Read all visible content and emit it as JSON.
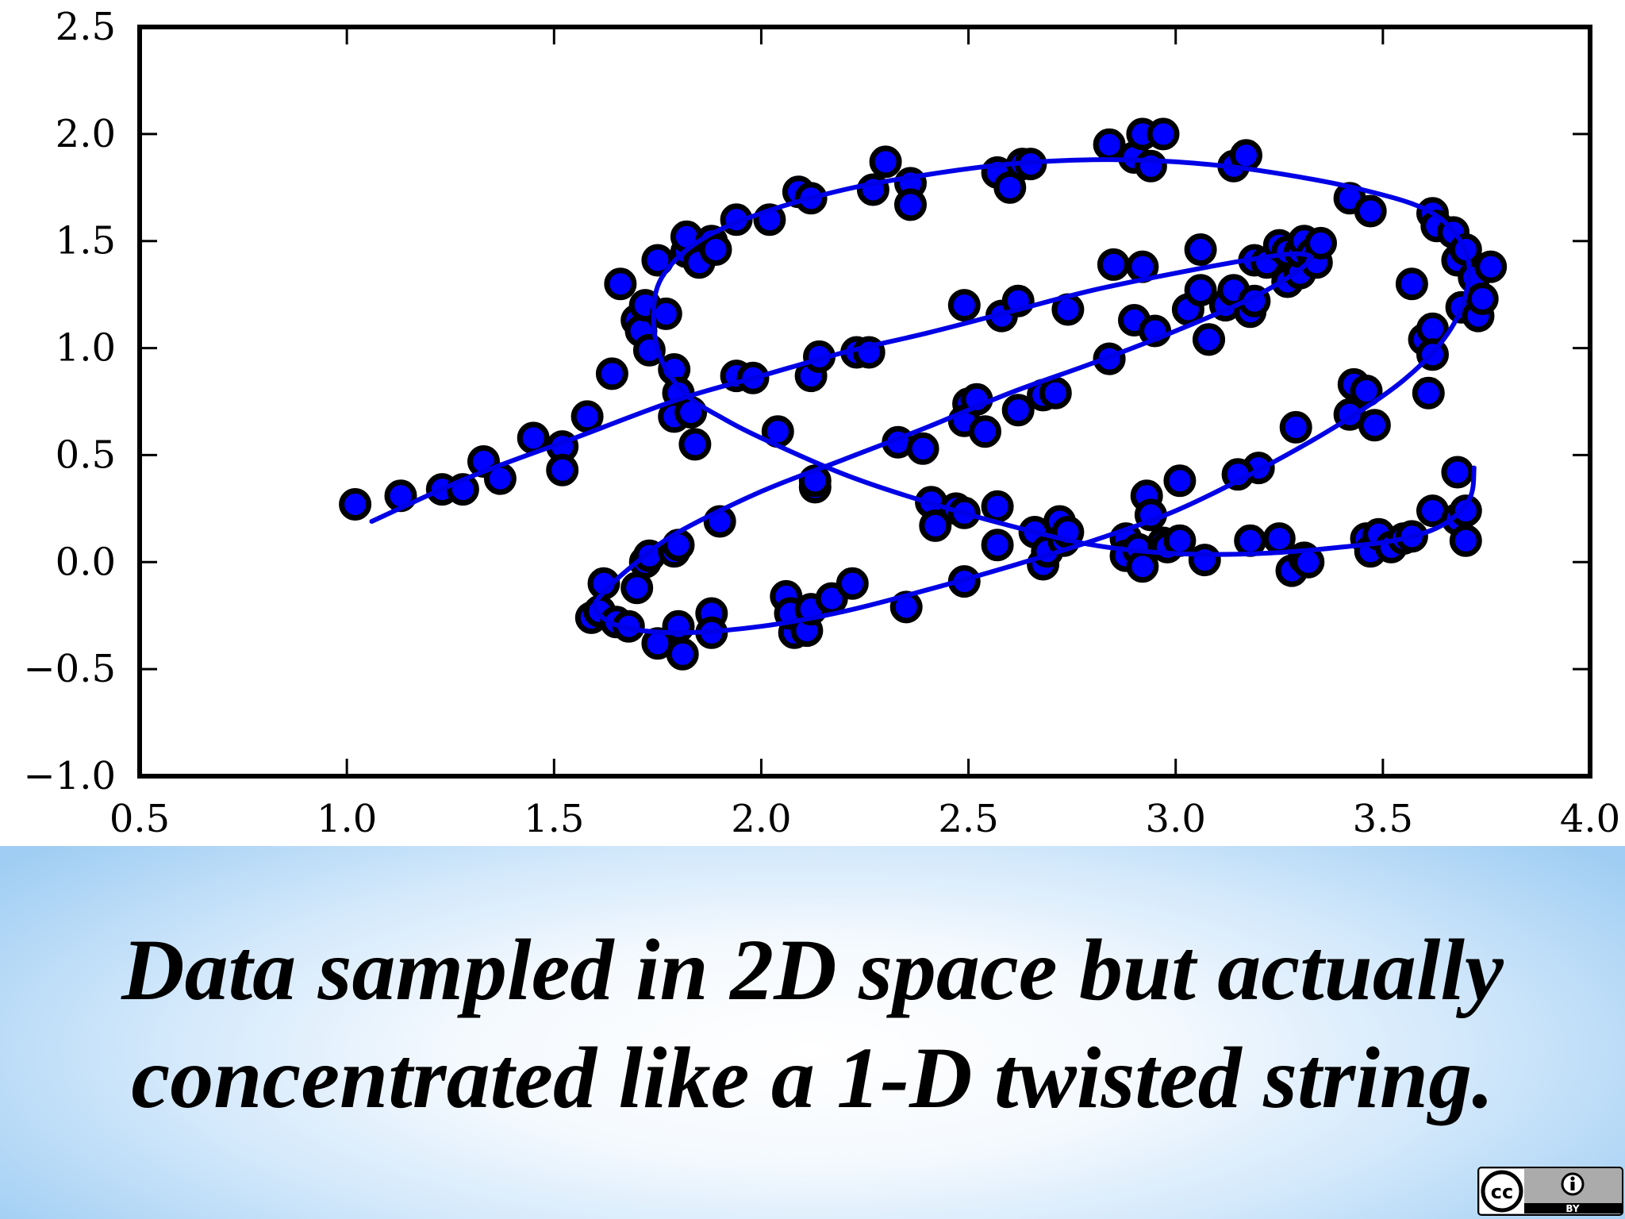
{
  "caption": {
    "line1": "Data sampled in 2D space but actually",
    "line2": "concentrated like a 1-D twisted string."
  },
  "license_badge": {
    "icon": "creative-commons-by-icon",
    "left_glyph": "cc",
    "right_text": "BY"
  },
  "colors": {
    "marker_fill": "#0000ff",
    "marker_edge": "#000000",
    "curve": "#0000e6",
    "caption_band": "#9fcdf3"
  },
  "chart_data": {
    "type": "scatter",
    "title": "",
    "xlabel": "",
    "ylabel": "",
    "xlim": [
      0.5,
      4.0
    ],
    "ylim": [
      -1.0,
      2.5
    ],
    "xticks": [
      "0.5",
      "1.0",
      "1.5",
      "2.0",
      "2.5",
      "3.0",
      "3.5",
      "4.0"
    ],
    "yticks": [
      "2.5",
      "2.0",
      "1.5",
      "1.0",
      "0.5",
      "0.0",
      "−0.5",
      "−1.0"
    ],
    "grid": false,
    "legend": "none",
    "points": [
      [
        1.02,
        0.27
      ],
      [
        1.13,
        0.31
      ],
      [
        1.23,
        0.34
      ],
      [
        1.28,
        0.34
      ],
      [
        1.33,
        0.47
      ],
      [
        1.37,
        0.39
      ],
      [
        1.45,
        0.58
      ],
      [
        1.52,
        0.54
      ],
      [
        1.52,
        0.43
      ],
      [
        1.58,
        0.68
      ],
      [
        1.64,
        0.88
      ],
      [
        1.66,
        1.3
      ],
      [
        1.7,
        1.13
      ],
      [
        1.71,
        1.08
      ],
      [
        1.72,
        1.2
      ],
      [
        1.73,
        0.99
      ],
      [
        1.77,
        1.16
      ],
      [
        1.75,
        1.41
      ],
      [
        1.79,
        0.9
      ],
      [
        1.8,
        0.79
      ],
      [
        1.79,
        0.68
      ],
      [
        1.83,
        0.7
      ],
      [
        1.84,
        0.55
      ],
      [
        1.82,
        1.45
      ],
      [
        1.82,
        1.52
      ],
      [
        1.85,
        1.4
      ],
      [
        1.88,
        1.5
      ],
      [
        1.89,
        1.46
      ],
      [
        1.94,
        1.6
      ],
      [
        1.94,
        0.87
      ],
      [
        1.98,
        0.86
      ],
      [
        2.02,
        1.6
      ],
      [
        2.04,
        0.61
      ],
      [
        2.09,
        1.73
      ],
      [
        2.12,
        1.7
      ],
      [
        2.12,
        0.87
      ],
      [
        2.14,
        0.96
      ],
      [
        2.23,
        0.98
      ],
      [
        2.26,
        0.98
      ],
      [
        2.27,
        1.74
      ],
      [
        2.3,
        1.87
      ],
      [
        2.33,
        0.56
      ],
      [
        2.36,
        1.77
      ],
      [
        2.36,
        1.67
      ],
      [
        2.39,
        0.53
      ],
      [
        2.49,
        1.2
      ],
      [
        2.5,
        0.74
      ],
      [
        2.49,
        0.66
      ],
      [
        2.52,
        0.76
      ],
      [
        2.54,
        0.61
      ],
      [
        2.57,
        1.82
      ],
      [
        2.58,
        1.15
      ],
      [
        2.6,
        1.75
      ],
      [
        2.62,
        1.22
      ],
      [
        2.62,
        0.71
      ],
      [
        2.63,
        1.86
      ],
      [
        2.65,
        1.86
      ],
      [
        2.68,
        0.78
      ],
      [
        2.71,
        0.79
      ],
      [
        2.74,
        1.18
      ],
      [
        2.84,
        1.95
      ],
      [
        2.84,
        0.95
      ],
      [
        2.85,
        1.39
      ],
      [
        2.9,
        1.89
      ],
      [
        2.9,
        1.13
      ],
      [
        2.92,
        2.0
      ],
      [
        2.92,
        1.38
      ],
      [
        2.94,
        1.85
      ],
      [
        2.95,
        1.08
      ],
      [
        2.97,
        2.0
      ],
      [
        3.03,
        1.18
      ],
      [
        3.06,
        1.46
      ],
      [
        3.06,
        1.27
      ],
      [
        3.08,
        1.04
      ],
      [
        3.12,
        1.2
      ],
      [
        3.14,
        1.85
      ],
      [
        3.14,
        1.27
      ],
      [
        3.17,
        1.9
      ],
      [
        3.18,
        1.17
      ],
      [
        3.19,
        1.22
      ],
      [
        3.19,
        1.41
      ],
      [
        3.22,
        1.4
      ],
      [
        3.25,
        1.48
      ],
      [
        3.27,
        1.31
      ],
      [
        3.27,
        1.45
      ],
      [
        3.3,
        1.35
      ],
      [
        3.3,
        1.45
      ],
      [
        3.31,
        1.5
      ],
      [
        3.33,
        1.44
      ],
      [
        3.34,
        1.4
      ],
      [
        3.35,
        1.49
      ],
      [
        3.42,
        1.7
      ],
      [
        3.47,
        1.64
      ],
      [
        3.57,
        1.3
      ],
      [
        3.6,
        1.04
      ],
      [
        3.62,
        1.09
      ],
      [
        3.62,
        0.97
      ],
      [
        3.61,
        0.79
      ],
      [
        3.62,
        1.63
      ],
      [
        3.63,
        1.57
      ],
      [
        3.67,
        1.54
      ],
      [
        3.69,
        1.19
      ],
      [
        3.68,
        1.41
      ],
      [
        3.7,
        1.46
      ],
      [
        3.72,
        1.33
      ],
      [
        3.73,
        1.15
      ],
      [
        3.74,
        1.23
      ],
      [
        3.76,
        1.38
      ],
      [
        3.43,
        0.83
      ],
      [
        3.42,
        0.69
      ],
      [
        3.46,
        0.8
      ],
      [
        3.48,
        0.64
      ],
      [
        3.29,
        0.63
      ],
      [
        3.2,
        0.44
      ],
      [
        3.15,
        0.41
      ],
      [
        3.01,
        0.38
      ],
      [
        2.93,
        0.31
      ],
      [
        2.94,
        0.22
      ],
      [
        2.84,
        0.95
      ],
      [
        3.08,
        1.04
      ],
      [
        2.08,
        -0.33
      ],
      [
        1.59,
        -0.26
      ],
      [
        1.61,
        -0.23
      ],
      [
        1.62,
        -0.1
      ],
      [
        1.65,
        -0.28
      ],
      [
        1.68,
        -0.3
      ],
      [
        1.7,
        -0.12
      ],
      [
        1.72,
        0.0
      ],
      [
        1.73,
        0.03
      ],
      [
        1.75,
        -0.38
      ],
      [
        1.79,
        0.05
      ],
      [
        1.8,
        0.08
      ],
      [
        1.8,
        -0.3
      ],
      [
        1.81,
        -0.43
      ],
      [
        1.88,
        -0.24
      ],
      [
        1.88,
        -0.33
      ],
      [
        1.9,
        0.19
      ],
      [
        2.06,
        -0.16
      ],
      [
        2.07,
        -0.24
      ],
      [
        2.11,
        -0.32
      ],
      [
        2.12,
        -0.22
      ],
      [
        2.17,
        -0.17
      ],
      [
        2.22,
        -0.1
      ],
      [
        2.35,
        -0.21
      ],
      [
        2.13,
        0.35
      ],
      [
        2.13,
        0.38
      ],
      [
        2.41,
        0.28
      ],
      [
        2.42,
        0.17
      ],
      [
        2.47,
        0.25
      ],
      [
        2.49,
        0.23
      ],
      [
        2.57,
        0.26
      ],
      [
        2.49,
        -0.09
      ],
      [
        2.57,
        0.08
      ],
      [
        2.66,
        0.14
      ],
      [
        2.68,
        -0.01
      ],
      [
        2.69,
        0.05
      ],
      [
        2.72,
        0.19
      ],
      [
        2.73,
        0.1
      ],
      [
        2.74,
        0.14
      ],
      [
        2.88,
        0.11
      ],
      [
        2.88,
        0.03
      ],
      [
        2.91,
        0.06
      ],
      [
        2.92,
        -0.02
      ],
      [
        2.97,
        0.09
      ],
      [
        2.98,
        0.07
      ],
      [
        3.01,
        0.1
      ],
      [
        3.07,
        0.01
      ],
      [
        3.18,
        0.1
      ],
      [
        3.25,
        0.11
      ],
      [
        3.28,
        -0.04
      ],
      [
        3.31,
        0.02
      ],
      [
        3.32,
        0.0
      ],
      [
        3.46,
        0.11
      ],
      [
        3.47,
        0.05
      ],
      [
        3.49,
        0.13
      ],
      [
        3.52,
        0.07
      ],
      [
        3.55,
        0.11
      ],
      [
        3.57,
        0.12
      ],
      [
        3.62,
        0.24
      ],
      [
        3.68,
        0.2
      ],
      [
        3.68,
        0.42
      ],
      [
        3.7,
        0.24
      ],
      [
        3.7,
        0.1
      ]
    ],
    "curve": [
      [
        1.06,
        0.19
      ],
      [
        1.3,
        0.4
      ],
      [
        1.55,
        0.58
      ],
      [
        1.8,
        0.76
      ],
      [
        2.0,
        0.87
      ],
      [
        2.2,
        0.98
      ],
      [
        2.4,
        1.07
      ],
      [
        2.6,
        1.17
      ],
      [
        2.8,
        1.27
      ],
      [
        3.0,
        1.35
      ],
      [
        3.2,
        1.42
      ],
      [
        3.3,
        1.44
      ],
      [
        3.32,
        1.4
      ],
      [
        3.2,
        1.25
      ],
      [
        3.0,
        1.08
      ],
      [
        2.8,
        0.93
      ],
      [
        2.6,
        0.79
      ],
      [
        2.4,
        0.63
      ],
      [
        2.2,
        0.48
      ],
      [
        2.0,
        0.33
      ],
      [
        1.8,
        0.14
      ],
      [
        1.7,
        0.0
      ],
      [
        1.62,
        -0.14
      ],
      [
        1.6,
        -0.22
      ],
      [
        1.66,
        -0.3
      ],
      [
        1.8,
        -0.33
      ],
      [
        2.0,
        -0.3
      ],
      [
        2.2,
        -0.23
      ],
      [
        2.4,
        -0.13
      ],
      [
        2.6,
        -0.02
      ],
      [
        2.8,
        0.1
      ],
      [
        3.0,
        0.24
      ],
      [
        3.2,
        0.43
      ],
      [
        3.4,
        0.65
      ],
      [
        3.55,
        0.85
      ],
      [
        3.65,
        1.05
      ],
      [
        3.7,
        1.25
      ],
      [
        3.7,
        1.45
      ],
      [
        3.62,
        1.63
      ],
      [
        3.45,
        1.74
      ],
      [
        3.2,
        1.83
      ],
      [
        3.0,
        1.87
      ],
      [
        2.8,
        1.88
      ],
      [
        2.6,
        1.86
      ],
      [
        2.4,
        1.81
      ],
      [
        2.2,
        1.74
      ],
      [
        2.0,
        1.63
      ],
      [
        1.85,
        1.5
      ],
      [
        1.76,
        1.33
      ],
      [
        1.74,
        1.14
      ],
      [
        1.76,
        0.94
      ],
      [
        1.82,
        0.78
      ],
      [
        1.9,
        0.68
      ],
      [
        2.0,
        0.58
      ],
      [
        2.2,
        0.41
      ],
      [
        2.4,
        0.28
      ],
      [
        2.6,
        0.17
      ],
      [
        2.8,
        0.08
      ],
      [
        3.0,
        0.04
      ],
      [
        3.2,
        0.04
      ],
      [
        3.4,
        0.07
      ],
      [
        3.55,
        0.11
      ],
      [
        3.65,
        0.18
      ],
      [
        3.71,
        0.3
      ],
      [
        3.72,
        0.44
      ]
    ]
  }
}
